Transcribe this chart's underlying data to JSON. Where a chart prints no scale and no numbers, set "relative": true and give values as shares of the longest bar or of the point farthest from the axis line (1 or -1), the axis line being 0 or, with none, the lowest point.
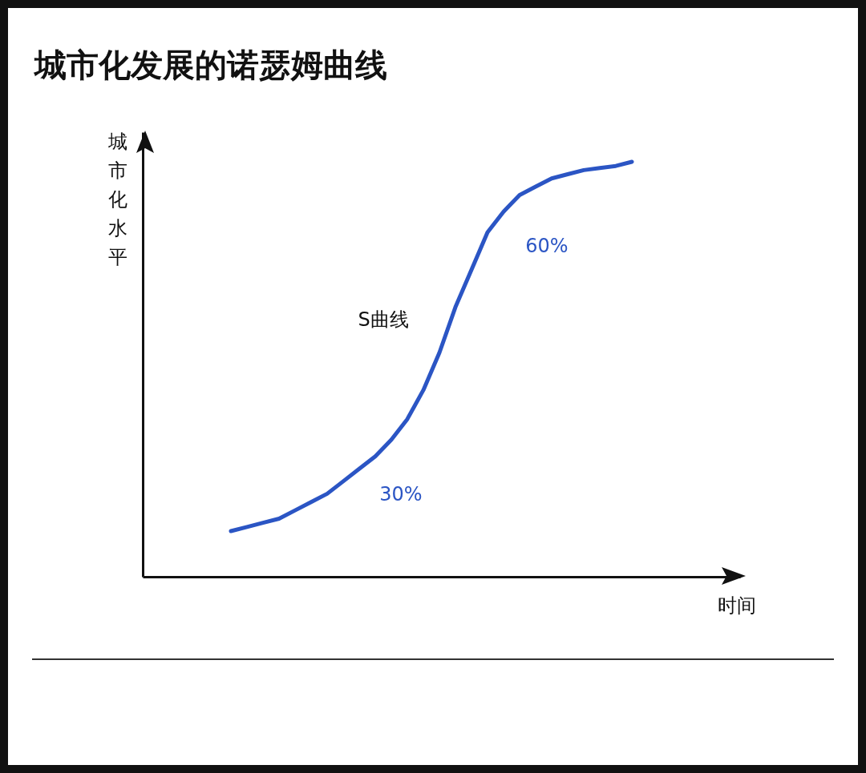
{
  "chart_data": {
    "type": "line",
    "title": "城市化发展的诺瑟姆曲线",
    "xlabel": "时间",
    "ylabel": "城市化水平",
    "relative": true,
    "categories": [
      null,
      null,
      null,
      null,
      null,
      null,
      null,
      null,
      null,
      null,
      null,
      null,
      null,
      null,
      null,
      null,
      null,
      null,
      null,
      null,
      null,
      null,
      null,
      null,
      null,
      null
    ],
    "series": [
      {
        "color": "#2b55c4",
        "values": [
          0.11,
          0.12,
          0.13,
          0.14,
          0.16,
          0.18,
          0.2,
          0.23,
          0.26,
          0.29,
          0.33,
          0.38,
          0.45,
          0.54,
          0.65,
          0.74,
          0.83,
          0.88,
          0.92,
          0.94,
          0.96,
          0.97,
          0.98,
          0.985,
          0.99,
          1
        ]
      }
    ],
    "annotations": [
      "60%",
      "S曲线",
      "30%"
    ],
    "grid": false,
    "marker": "none",
    "line_style": "solid"
  }
}
